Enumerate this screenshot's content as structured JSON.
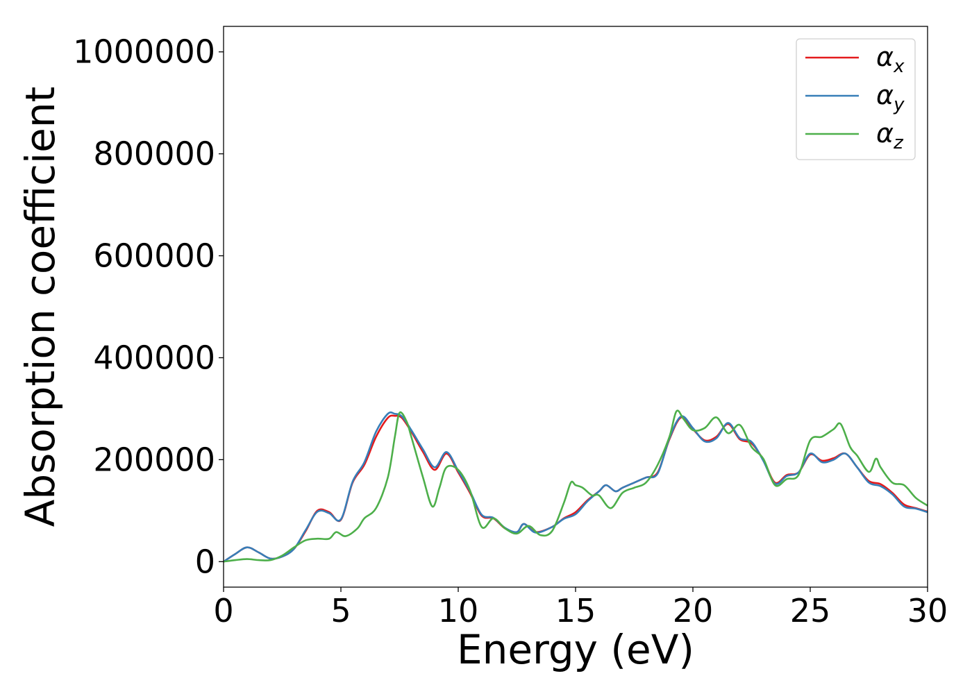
{
  "chart_data": {
    "type": "line",
    "xlabel": "Energy (eV)",
    "ylabel": "Absorption coefficient",
    "xlim": [
      0,
      30
    ],
    "ylim": [
      -50000,
      1050000
    ],
    "xticks": [
      "0",
      "5",
      "10",
      "15",
      "20",
      "25",
      "30"
    ],
    "yticks": [
      "0",
      "200000",
      "400000",
      "600000",
      "800000",
      "1000000"
    ],
    "grid": false,
    "legend_position": "top-right",
    "series": [
      {
        "name": "αx",
        "symbol": "α",
        "subscript": "x",
        "color": "#e41a1c",
        "points": [
          [
            0,
            0
          ],
          [
            0.5,
            15000
          ],
          [
            1,
            28000
          ],
          [
            1.5,
            18000
          ],
          [
            2,
            6000
          ],
          [
            2.5,
            10000
          ],
          [
            3,
            25000
          ],
          [
            3.5,
            60000
          ],
          [
            4,
            100000
          ],
          [
            4.5,
            97000
          ],
          [
            5,
            82000
          ],
          [
            5.5,
            155000
          ],
          [
            6,
            190000
          ],
          [
            6.5,
            245000
          ],
          [
            7,
            282000
          ],
          [
            7.3,
            286000
          ],
          [
            7.6,
            282000
          ],
          [
            8,
            255000
          ],
          [
            8.5,
            215000
          ],
          [
            9,
            180000
          ],
          [
            9.5,
            212000
          ],
          [
            10,
            175000
          ],
          [
            10.5,
            135000
          ],
          [
            11,
            90000
          ],
          [
            11.5,
            85000
          ],
          [
            12,
            65000
          ],
          [
            12.5,
            58000
          ],
          [
            12.8,
            74000
          ],
          [
            13.3,
            58000
          ],
          [
            14,
            68000
          ],
          [
            14.5,
            85000
          ],
          [
            15,
            97000
          ],
          [
            15.5,
            120000
          ],
          [
            16,
            138000
          ],
          [
            16.3,
            150000
          ],
          [
            16.7,
            138000
          ],
          [
            17,
            145000
          ],
          [
            17.5,
            155000
          ],
          [
            18,
            165000
          ],
          [
            18.5,
            175000
          ],
          [
            19,
            240000
          ],
          [
            19.5,
            283000
          ],
          [
            20,
            260000
          ],
          [
            20.5,
            238000
          ],
          [
            21,
            245000
          ],
          [
            21.5,
            270000
          ],
          [
            22,
            240000
          ],
          [
            22.5,
            232000
          ],
          [
            23,
            200000
          ],
          [
            23.5,
            155000
          ],
          [
            24,
            170000
          ],
          [
            24.5,
            175000
          ],
          [
            25,
            210000
          ],
          [
            25.5,
            198000
          ],
          [
            26,
            203000
          ],
          [
            26.5,
            212000
          ],
          [
            27,
            185000
          ],
          [
            27.5,
            158000
          ],
          [
            28,
            152000
          ],
          [
            28.5,
            135000
          ],
          [
            29,
            112000
          ],
          [
            29.5,
            105000
          ],
          [
            30,
            98000
          ]
        ]
      },
      {
        "name": "αy",
        "symbol": "α",
        "subscript": "y",
        "color": "#377eb8",
        "points": [
          [
            0,
            0
          ],
          [
            0.5,
            15000
          ],
          [
            1,
            28000
          ],
          [
            1.5,
            18000
          ],
          [
            2,
            6000
          ],
          [
            2.5,
            10000
          ],
          [
            3,
            25000
          ],
          [
            3.5,
            62000
          ],
          [
            4,
            98000
          ],
          [
            4.5,
            95000
          ],
          [
            5,
            83000
          ],
          [
            5.5,
            157000
          ],
          [
            6,
            195000
          ],
          [
            6.5,
            255000
          ],
          [
            7,
            290000
          ],
          [
            7.3,
            290000
          ],
          [
            7.6,
            285000
          ],
          [
            8,
            258000
          ],
          [
            8.5,
            220000
          ],
          [
            9,
            185000
          ],
          [
            9.5,
            215000
          ],
          [
            10,
            178000
          ],
          [
            10.5,
            138000
          ],
          [
            11,
            92000
          ],
          [
            11.5,
            86000
          ],
          [
            12,
            66000
          ],
          [
            12.5,
            58000
          ],
          [
            12.8,
            74000
          ],
          [
            13.3,
            57000
          ],
          [
            14,
            68000
          ],
          [
            14.5,
            84000
          ],
          [
            15,
            93000
          ],
          [
            15.5,
            118000
          ],
          [
            16,
            138000
          ],
          [
            16.3,
            150000
          ],
          [
            16.7,
            138000
          ],
          [
            17,
            145000
          ],
          [
            17.5,
            155000
          ],
          [
            18,
            165000
          ],
          [
            18.5,
            173000
          ],
          [
            19,
            242000
          ],
          [
            19.5,
            285000
          ],
          [
            20,
            262000
          ],
          [
            20.5,
            236000
          ],
          [
            21,
            242000
          ],
          [
            21.5,
            272000
          ],
          [
            22,
            242000
          ],
          [
            22.5,
            235000
          ],
          [
            23,
            198000
          ],
          [
            23.5,
            153000
          ],
          [
            24,
            168000
          ],
          [
            24.5,
            175000
          ],
          [
            25,
            212000
          ],
          [
            25.5,
            195000
          ],
          [
            26,
            200000
          ],
          [
            26.5,
            212000
          ],
          [
            27,
            185000
          ],
          [
            27.5,
            155000
          ],
          [
            28,
            148000
          ],
          [
            28.5,
            132000
          ],
          [
            29,
            108000
          ],
          [
            29.5,
            104000
          ],
          [
            30,
            97000
          ]
        ]
      },
      {
        "name": "αz",
        "symbol": "α",
        "subscript": "z",
        "color": "#4daf4a",
        "points": [
          [
            0,
            0
          ],
          [
            0.5,
            3000
          ],
          [
            1,
            5000
          ],
          [
            1.5,
            3000
          ],
          [
            2,
            3000
          ],
          [
            2.5,
            12000
          ],
          [
            3,
            28000
          ],
          [
            3.5,
            42000
          ],
          [
            4,
            45000
          ],
          [
            4.5,
            45000
          ],
          [
            4.8,
            58000
          ],
          [
            5.2,
            50000
          ],
          [
            5.7,
            65000
          ],
          [
            6,
            85000
          ],
          [
            6.5,
            105000
          ],
          [
            7,
            165000
          ],
          [
            7.3,
            245000
          ],
          [
            7.5,
            292000
          ],
          [
            7.8,
            275000
          ],
          [
            8,
            245000
          ],
          [
            8.5,
            165000
          ],
          [
            8.9,
            108000
          ],
          [
            9.2,
            145000
          ],
          [
            9.5,
            185000
          ],
          [
            10,
            180000
          ],
          [
            10.5,
            140000
          ],
          [
            11,
            68000
          ],
          [
            11.5,
            85000
          ],
          [
            12,
            65000
          ],
          [
            12.5,
            55000
          ],
          [
            13,
            70000
          ],
          [
            13.5,
            52000
          ],
          [
            14,
            60000
          ],
          [
            14.5,
            115000
          ],
          [
            14.8,
            155000
          ],
          [
            15,
            150000
          ],
          [
            15.3,
            145000
          ],
          [
            15.7,
            130000
          ],
          [
            16,
            130000
          ],
          [
            16.5,
            105000
          ],
          [
            17,
            135000
          ],
          [
            17.5,
            145000
          ],
          [
            18,
            155000
          ],
          [
            18.5,
            190000
          ],
          [
            19,
            245000
          ],
          [
            19.3,
            295000
          ],
          [
            19.6,
            280000
          ],
          [
            20,
            258000
          ],
          [
            20.5,
            262000
          ],
          [
            21,
            283000
          ],
          [
            21.5,
            252000
          ],
          [
            22,
            268000
          ],
          [
            22.5,
            225000
          ],
          [
            23,
            202000
          ],
          [
            23.5,
            150000
          ],
          [
            24,
            162000
          ],
          [
            24.5,
            170000
          ],
          [
            25,
            238000
          ],
          [
            25.5,
            245000
          ],
          [
            26,
            260000
          ],
          [
            26.3,
            270000
          ],
          [
            26.7,
            225000
          ],
          [
            27,
            208000
          ],
          [
            27.5,
            176000
          ],
          [
            27.8,
            202000
          ],
          [
            28,
            185000
          ],
          [
            28.5,
            155000
          ],
          [
            29,
            150000
          ],
          [
            29.5,
            125000
          ],
          [
            30,
            110000
          ]
        ]
      }
    ]
  }
}
